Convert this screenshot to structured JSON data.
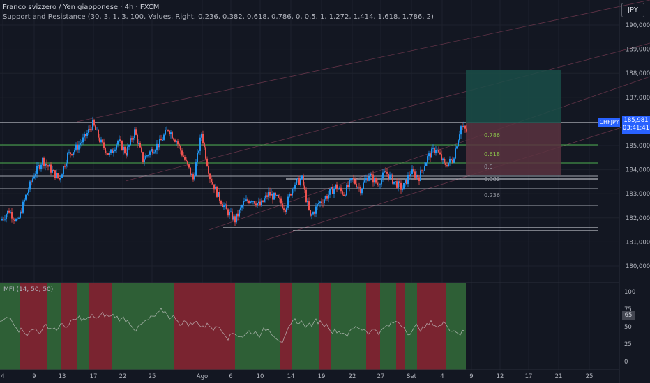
{
  "header": {
    "title": "Franco svizzero / Yen giapponese · 4h · FXCM",
    "indicator": "Support and Resistance (30, 3, 1, 3, 100, Values, Right, 0,236, 0,382, 0,618, 0,786, 0, 0,5, 1, 1,272, 1,414, 1,618, 1,786, 2)"
  },
  "toolbar": {
    "currency": "JPY"
  },
  "price_axis": {
    "labels": [
      "190,000",
      "189,000",
      "188,000",
      "187,000",
      "185,000",
      "184,000",
      "183,000",
      "182,000",
      "181,000",
      "180,000"
    ]
  },
  "last_price": {
    "symbol": "CHFJPY",
    "price": "185,981",
    "countdown": "03:41:41"
  },
  "fib_levels": [
    "0.786",
    "0.618",
    "0.5",
    "0.382",
    "0.236"
  ],
  "time_axis": {
    "labels": [
      "4",
      "9",
      "13",
      "17",
      "22",
      "25",
      "Ago",
      "6",
      "10",
      "14",
      "19",
      "22",
      "27",
      "Set",
      "4",
      "9",
      "12",
      "17",
      "21",
      "25"
    ]
  },
  "mfi": {
    "label": "MFI (14, 50, 50)",
    "axis_labels": [
      "100",
      "75",
      "50",
      "25",
      "0"
    ],
    "value": "65"
  },
  "colors": {
    "background": "#131722",
    "candle_up": "#2196f3",
    "candle_down": "#ef5350",
    "support_line": "#4caf50",
    "mfi_green": "#2e5f36",
    "mfi_red": "#7a2430",
    "accent": "#2962ff"
  },
  "chart_data": {
    "type": "candlestick",
    "symbol": "CHFJPY",
    "timeframe": "4h",
    "ylim": [
      179.5,
      190.5
    ],
    "close_path": [
      181.9,
      182.3,
      181.8,
      182.9,
      183.8,
      184.4,
      184.0,
      183.6,
      184.6,
      184.9,
      185.3,
      185.9,
      185.1,
      184.6,
      185.2,
      184.7,
      185.6,
      184.4,
      184.8,
      185.1,
      185.7,
      185.2,
      184.4,
      183.6,
      185.5,
      183.7,
      182.9,
      182.3,
      181.9,
      182.6,
      182.8,
      182.5,
      183.0,
      182.8,
      182.4,
      183.4,
      183.6,
      182.0,
      182.6,
      182.9,
      183.3,
      183.0,
      183.6,
      183.2,
      183.8,
      183.4,
      183.9,
      183.5,
      183.2,
      183.9,
      183.7,
      184.5,
      184.9,
      184.2,
      184.4,
      185.8,
      185.5
    ],
    "fib_values": [
      0.786,
      0.618,
      0.5,
      0.382,
      0.236
    ],
    "mfi_range": [
      0,
      100
    ]
  }
}
